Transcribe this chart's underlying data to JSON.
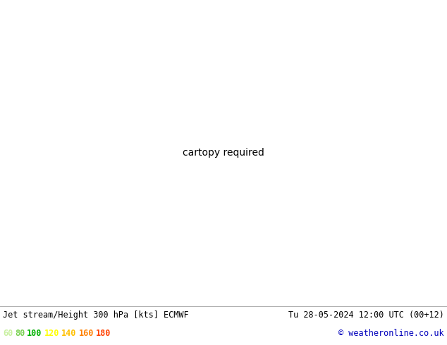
{
  "title_left": "Jet stream/Height 300 hPa [kts] ECMWF",
  "title_right": "Tu 28-05-2024 12:00 UTC (00+12)",
  "copyright": "© weatheronline.co.uk",
  "legend_values": [
    60,
    80,
    100,
    120,
    140,
    160,
    180
  ],
  "legend_colors": [
    "#c8f0a0",
    "#78d050",
    "#00b000",
    "#ffff00",
    "#ffc000",
    "#ff8000",
    "#ff4000"
  ],
  "bg_color": "#e0e0e0",
  "land_color": "#c8e8a0",
  "ocean_color": "#e0e0e0",
  "coast_color": "#808080",
  "border_color": "#808080",
  "contour_color": "#000000",
  "label_fontsize": 9,
  "title_fontsize": 9,
  "copyright_color": "#0000bb",
  "figsize": [
    6.34,
    4.9
  ],
  "dpi": 100,
  "jet_colors": [
    "#d4f5b0",
    "#a8e878",
    "#50c828",
    "#00a000",
    "#ffff00",
    "#ffc000",
    "#ff8000"
  ],
  "jet_levels": [
    60,
    80,
    100,
    120,
    140,
    160,
    180
  ],
  "map_extent": [
    -175,
    -45,
    15,
    80
  ]
}
